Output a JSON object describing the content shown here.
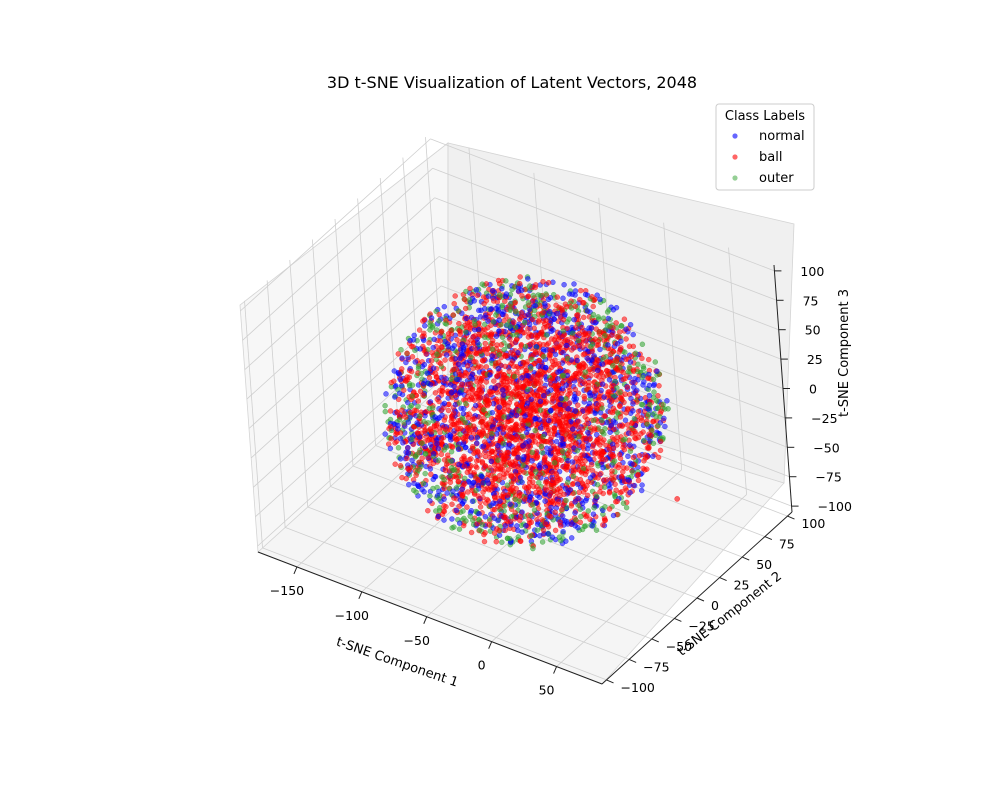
{
  "chart_data": {
    "type": "scatter",
    "title": "3D t-SNE Visualization of Latent Vectors, 2048",
    "xlabel": "t-SNE Component 1",
    "ylabel": "t-SNE Component 2",
    "zlabel": "t-SNE Component 3",
    "xlim": [
      -180,
      85
    ],
    "ylim": [
      -105,
      105
    ],
    "zlim": [
      -105,
      105
    ],
    "x_ticks": [
      -150,
      -100,
      -50,
      0,
      50
    ],
    "y_ticks": [
      -100,
      -75,
      -50,
      -25,
      0,
      25,
      50,
      75,
      100
    ],
    "z_ticks": [
      -100,
      -75,
      -50,
      -25,
      0,
      25,
      50,
      75,
      100
    ],
    "grid": true,
    "legend": {
      "title": "Class Labels",
      "placement": "top-right",
      "entries": [
        {
          "label": "normal",
          "color": "#0000ff"
        },
        {
          "label": "ball",
          "color": "#ff0000"
        },
        {
          "label": "outer",
          "color": "#2ca02c"
        }
      ]
    },
    "cluster": {
      "shape": "sphere",
      "center": [
        -40,
        0,
        0
      ],
      "radius": 90,
      "note": "dense overlapping cloud of all three classes"
    },
    "series": [
      {
        "name": "normal",
        "color": "#0000ff",
        "point_count": 1100
      },
      {
        "name": "ball",
        "color": "#ff0000",
        "point_count": 2400,
        "outliers": [
          {
            "x": 75,
            "y": 0,
            "z": -25
          }
        ]
      },
      {
        "name": "outer",
        "color": "#2ca02c",
        "point_count": 650
      }
    ]
  }
}
